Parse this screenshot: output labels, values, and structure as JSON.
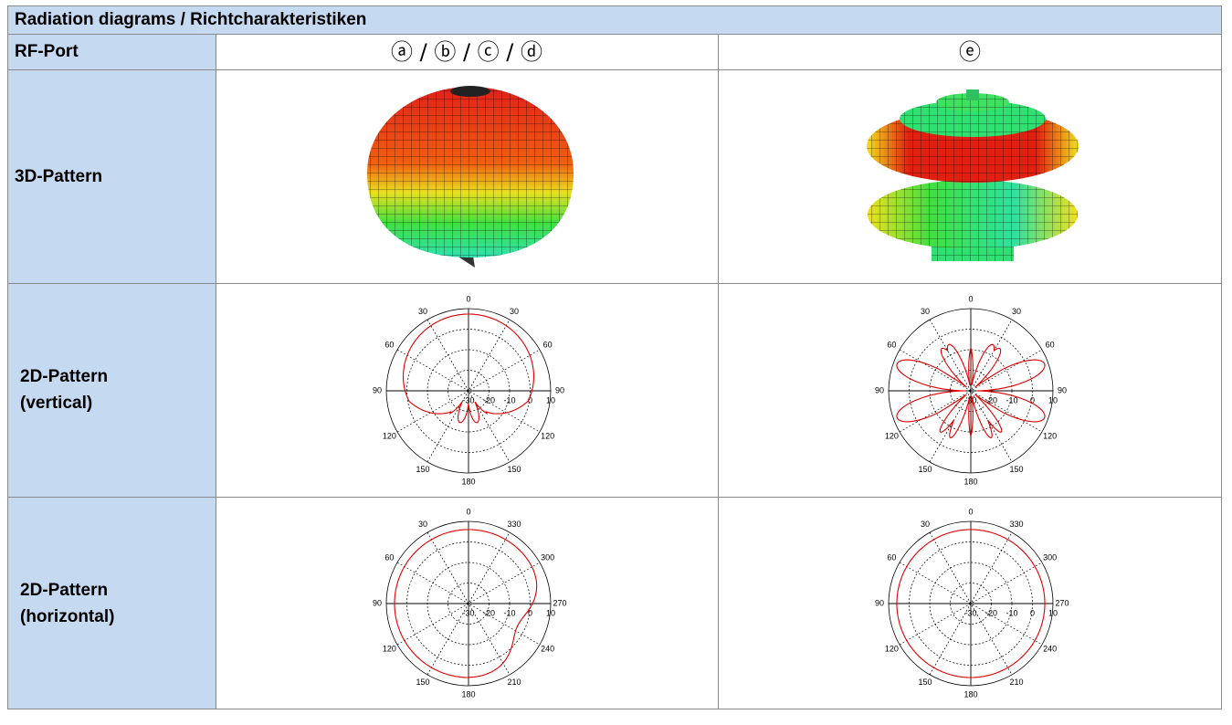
{
  "header": {
    "title": "Radiation diagrams / Richtcharakteristiken"
  },
  "table": {
    "rows": [
      [
        "RF-Port",
        "ⓐ / ⓑ / ⓒ / ⓓ",
        "ⓔ"
      ],
      [
        [
          "3D-Pattern"
        ]
      ],
      [
        [
          "2D-Pattern",
          "(vertical)"
        ]
      ],
      [
        [
          "2D-Pattern",
          "(horizontal)"
        ]
      ]
    ]
  },
  "plots": {
    "vertical": {
      "angle_labels": [
        0,
        30,
        30,
        60,
        60,
        90,
        90,
        120,
        120,
        150,
        150,
        180
      ],
      "radial_labels": [
        -30,
        -20,
        -10,
        0,
        10
      ]
    },
    "horizontal": {
      "angle_labels": [
        0,
        30,
        330,
        60,
        300,
        90,
        270,
        120,
        240,
        150,
        210,
        180
      ],
      "radial_labels": [
        -30,
        -20,
        -10,
        0,
        10
      ]
    }
  }
}
